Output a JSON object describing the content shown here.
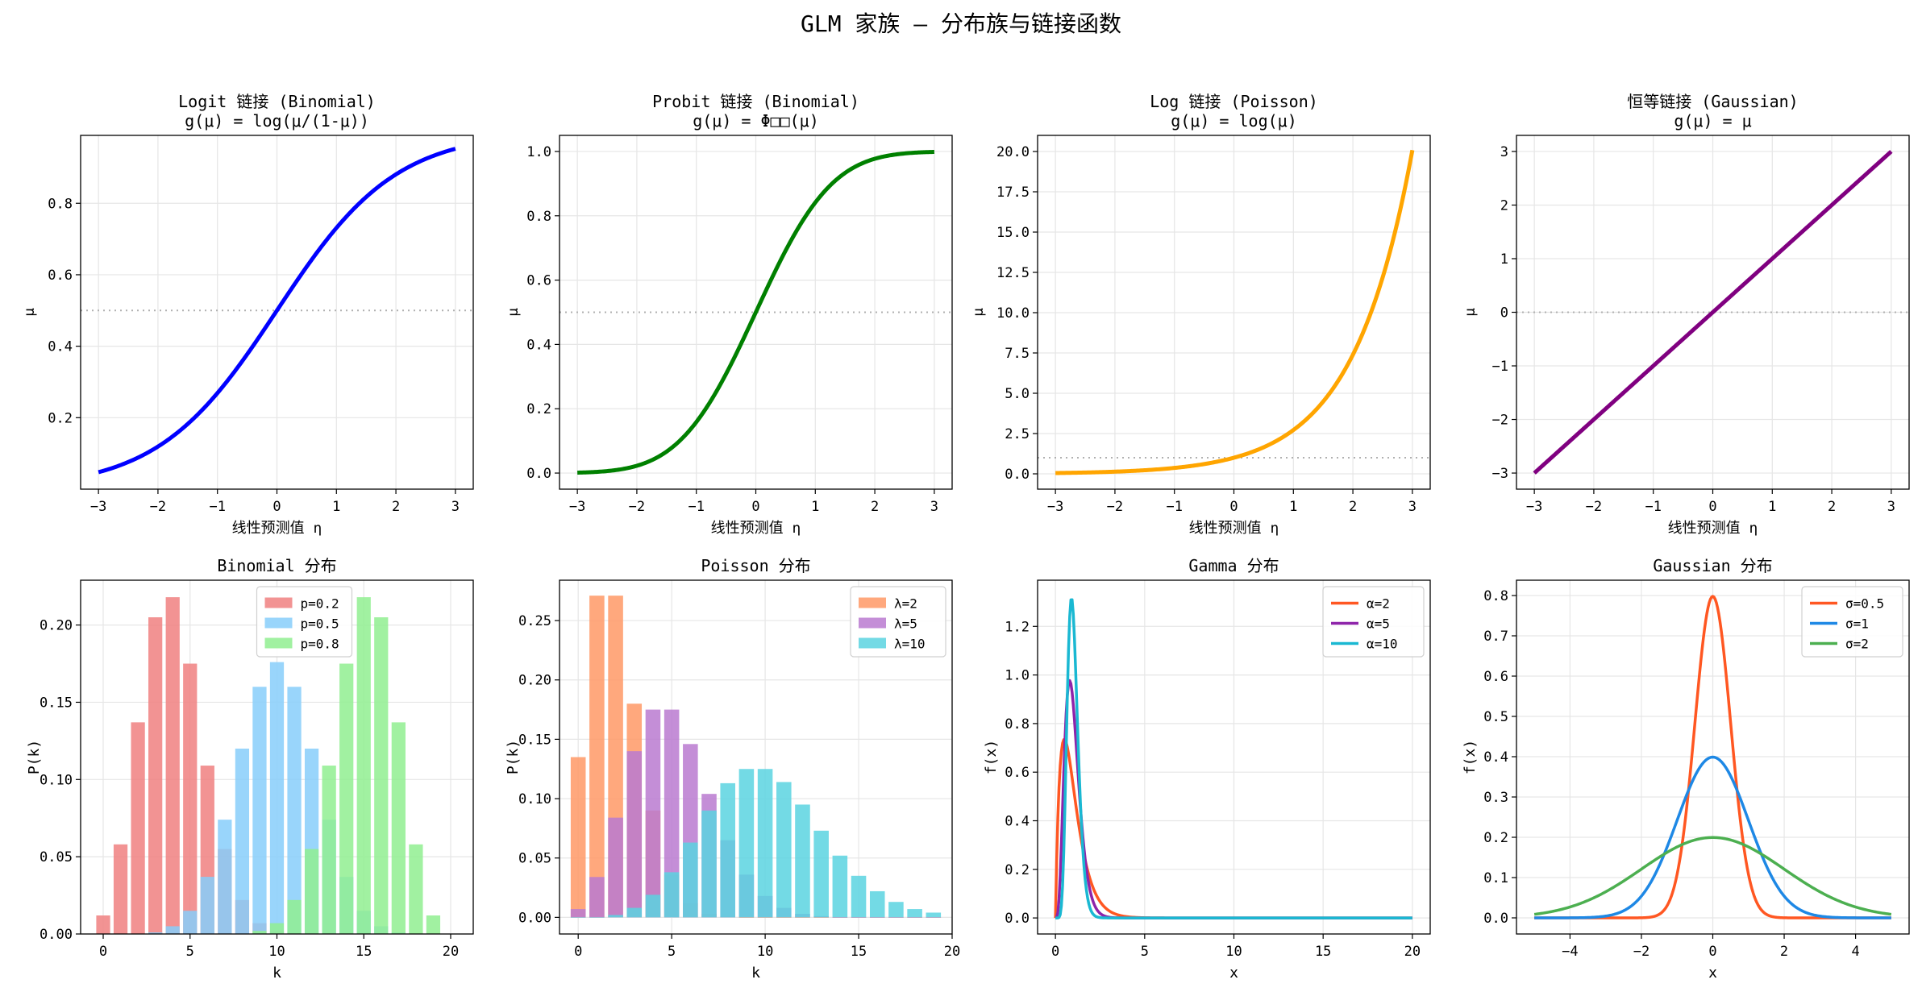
{
  "figure": {
    "title": "GLM 家族 — 分布族与链接函数"
  },
  "chart_data": [
    {
      "type": "line",
      "title": "Logit 链接 (Binomial)",
      "subtitle": "g(μ) = log(μ/(1-μ))",
      "xlabel": "线性预测值 η",
      "ylabel": "μ",
      "xlim": [
        -3.3,
        3.3
      ],
      "ylim": [
        0.0,
        0.99
      ],
      "xticks": [
        -3,
        -2,
        -1,
        0,
        1,
        2,
        3
      ],
      "xtick_labels": [
        "−3",
        "−2",
        "−1",
        "0",
        "1",
        "2",
        "3"
      ],
      "yticks": [
        0.2,
        0.4,
        0.6,
        0.8
      ],
      "ytick_labels": [
        "0.2",
        "0.4",
        "0.6",
        "0.8"
      ],
      "grid": true,
      "hline": 0.5,
      "series": [
        {
          "func": "logistic",
          "color": "#0000ff",
          "x": [
            -3,
            -2.5,
            -2,
            -1.5,
            -1,
            -0.5,
            0,
            0.5,
            1,
            1.5,
            2,
            2.5,
            3
          ],
          "y": [
            0.047,
            0.076,
            0.119,
            0.182,
            0.269,
            0.378,
            0.5,
            0.622,
            0.731,
            0.818,
            0.881,
            0.924,
            0.953
          ]
        }
      ]
    },
    {
      "type": "line",
      "title": "Probit 链接 (Binomial)",
      "subtitle": "g(μ) = Φ□□(μ)",
      "xlabel": "线性预测值 η",
      "ylabel": "μ",
      "xlim": [
        -3.3,
        3.3
      ],
      "ylim": [
        -0.05,
        1.05
      ],
      "xticks": [
        -3,
        -2,
        -1,
        0,
        1,
        2,
        3
      ],
      "xtick_labels": [
        "−3",
        "−2",
        "−1",
        "0",
        "1",
        "2",
        "3"
      ],
      "yticks": [
        0,
        0.2,
        0.4,
        0.6,
        0.8,
        1.0
      ],
      "ytick_labels": [
        "0.0",
        "0.2",
        "0.4",
        "0.6",
        "0.8",
        "1.0"
      ],
      "grid": true,
      "hline": 0.5,
      "series": [
        {
          "func": "normcdf",
          "color": "#008000",
          "x": [
            -3,
            -2.5,
            -2,
            -1.5,
            -1,
            -0.5,
            0,
            0.5,
            1,
            1.5,
            2,
            2.5,
            3
          ],
          "y": [
            0.001,
            0.006,
            0.023,
            0.067,
            0.159,
            0.309,
            0.5,
            0.691,
            0.841,
            0.933,
            0.977,
            0.994,
            0.999
          ]
        }
      ]
    },
    {
      "type": "line",
      "title": "Log 链接 (Poisson)",
      "subtitle": "g(μ) = log(μ)",
      "xlabel": "线性预测值 η",
      "ylabel": "μ",
      "xlim": [
        -3.3,
        3.3
      ],
      "ylim": [
        -0.95,
        21.0
      ],
      "xticks": [
        -3,
        -2,
        -1,
        0,
        1,
        2,
        3
      ],
      "xtick_labels": [
        "−3",
        "−2",
        "−1",
        "0",
        "1",
        "2",
        "3"
      ],
      "yticks": [
        0,
        2.5,
        5,
        7.5,
        10,
        12.5,
        15,
        17.5,
        20
      ],
      "ytick_labels": [
        "0.0",
        "2.5",
        "5.0",
        "7.5",
        "10.0",
        "12.5",
        "15.0",
        "17.5",
        "20.0"
      ],
      "grid": true,
      "hline": 1.0,
      "series": [
        {
          "func": "exp",
          "color": "#ffa500",
          "x": [
            -3,
            -2,
            -1,
            0,
            1,
            2,
            3
          ],
          "y": [
            0.05,
            0.135,
            0.368,
            1.0,
            2.718,
            7.389,
            20.09
          ]
        }
      ]
    },
    {
      "type": "line",
      "title": "恒等链接 (Gaussian)",
      "subtitle": "g(μ) = μ",
      "xlabel": "线性预测值 η",
      "ylabel": "μ",
      "xlim": [
        -3.3,
        3.3
      ],
      "ylim": [
        -3.3,
        3.3
      ],
      "xticks": [
        -3,
        -2,
        -1,
        0,
        1,
        2,
        3
      ],
      "xtick_labels": [
        "−3",
        "−2",
        "−1",
        "0",
        "1",
        "2",
        "3"
      ],
      "yticks": [
        -3,
        -2,
        -1,
        0,
        1,
        2,
        3
      ],
      "ytick_labels": [
        "−3",
        "−2",
        "−1",
        "0",
        "1",
        "2",
        "3"
      ],
      "grid": true,
      "hline": 0,
      "series": [
        {
          "func": "identity",
          "color": "#800080",
          "x": [
            -3,
            3
          ],
          "y": [
            -3,
            3
          ]
        }
      ]
    },
    {
      "type": "bar",
      "title": "Binomial 分布",
      "xlabel": "k",
      "ylabel": "P(k)",
      "xlim": [
        -1.3,
        21.3
      ],
      "ylim": [
        0,
        0.229
      ],
      "xticks": [
        0,
        5,
        10,
        15,
        20
      ],
      "xtick_labels": [
        "0",
        "5",
        "10",
        "15",
        "20"
      ],
      "yticks": [
        0,
        0.05,
        0.1,
        0.15,
        0.2
      ],
      "ytick_labels": [
        "0.00",
        "0.05",
        "0.10",
        "0.15",
        "0.20"
      ],
      "grid": true,
      "legend": "top-center",
      "x": [
        0,
        1,
        2,
        3,
        4,
        5,
        6,
        7,
        8,
        9,
        10,
        11,
        12,
        13,
        14,
        15,
        16,
        17,
        18,
        19,
        20
      ],
      "series": [
        {
          "name": "p=0.2",
          "color": "#f08080",
          "values": [
            0.012,
            0.058,
            0.137,
            0.205,
            0.218,
            0.175,
            0.109,
            0.055,
            0.022,
            0.007,
            0.002,
            0.0,
            0.0,
            0.0,
            0.0,
            0.0,
            0.0,
            0.0,
            0.0,
            0.0,
            0.0
          ]
        },
        {
          "name": "p=0.5",
          "color": "#87cefa",
          "values": [
            0.0,
            0.0,
            0.0,
            0.001,
            0.005,
            0.015,
            0.037,
            0.074,
            0.12,
            0.16,
            0.176,
            0.16,
            0.12,
            0.074,
            0.037,
            0.015,
            0.005,
            0.001,
            0.0,
            0.0,
            0.0
          ]
        },
        {
          "name": "p=0.8",
          "color": "#90ee90",
          "values": [
            0.0,
            0.0,
            0.0,
            0.0,
            0.0,
            0.0,
            0.0,
            0.0,
            0.0,
            0.002,
            0.007,
            0.022,
            0.055,
            0.109,
            0.175,
            0.218,
            0.205,
            0.137,
            0.058,
            0.012,
            0.0
          ]
        }
      ]
    },
    {
      "type": "bar",
      "title": "Poisson 分布",
      "xlabel": "k",
      "ylabel": "P(k)",
      "xlim": [
        -1.0,
        20.0
      ],
      "ylim": [
        -0.014,
        0.284
      ],
      "xticks": [
        0,
        5,
        10,
        15,
        20
      ],
      "xtick_labels": [
        "0",
        "5",
        "10",
        "15",
        "20"
      ],
      "yticks": [
        0,
        0.05,
        0.1,
        0.15,
        0.2,
        0.25
      ],
      "ytick_labels": [
        "0.00",
        "0.05",
        "0.10",
        "0.15",
        "0.20",
        "0.25"
      ],
      "grid": true,
      "legend": "top-right",
      "x": [
        0,
        1,
        2,
        3,
        4,
        5,
        6,
        7,
        8,
        9,
        10,
        11,
        12,
        13,
        14,
        15,
        16,
        17,
        18,
        19
      ],
      "series": [
        {
          "name": "λ=2",
          "color": "#ff9966",
          "values": [
            0.135,
            0.271,
            0.271,
            0.18,
            0.09,
            0.036,
            0.012,
            0.003,
            0.001,
            0.0,
            0.0,
            0.0,
            0.0,
            0.0,
            0.0,
            0.0,
            0.0,
            0.0,
            0.0,
            0.0
          ]
        },
        {
          "name": "λ=5",
          "color": "#ba7ad0",
          "values": [
            0.007,
            0.034,
            0.084,
            0.14,
            0.175,
            0.175,
            0.146,
            0.104,
            0.065,
            0.036,
            0.018,
            0.008,
            0.003,
            0.001,
            0.0,
            0.0,
            0.0,
            0.0,
            0.0,
            0.0
          ]
        },
        {
          "name": "λ=10",
          "color": "#5bd3e0",
          "values": [
            0.0,
            0.0,
            0.002,
            0.008,
            0.019,
            0.038,
            0.063,
            0.09,
            0.113,
            0.125,
            0.125,
            0.114,
            0.095,
            0.073,
            0.052,
            0.035,
            0.022,
            0.013,
            0.007,
            0.004
          ]
        }
      ]
    },
    {
      "type": "line",
      "title": "Gamma 分布",
      "xlabel": "x",
      "ylabel": "f(x)",
      "xlim": [
        -1.0,
        21.0
      ],
      "ylim": [
        -0.066,
        1.39
      ],
      "xticks": [
        0,
        5,
        10,
        15,
        20
      ],
      "xtick_labels": [
        "0",
        "5",
        "10",
        "15",
        "20"
      ],
      "yticks": [
        0,
        0.2,
        0.4,
        0.6,
        0.8,
        1.0,
        1.2
      ],
      "ytick_labels": [
        "0.0",
        "0.2",
        "0.4",
        "0.6",
        "0.8",
        "1.0",
        "1.2"
      ],
      "grid": true,
      "legend": "top-right",
      "series": [
        {
          "name": "α=2",
          "color": "#ff5722",
          "x": [
            0,
            0.1,
            0.25,
            0.5,
            0.75,
            1.0,
            1.5,
            2.0,
            2.5,
            3,
            4,
            5,
            10,
            20
          ],
          "y": [
            0,
            0.264,
            0.552,
            0.736,
            0.669,
            0.541,
            0.299,
            0.147,
            0.067,
            0.03,
            0.005,
            0.001,
            0,
            0
          ]
        },
        {
          "name": "α=5",
          "color": "#8e24aa",
          "x": [
            0,
            0.2,
            0.4,
            0.6,
            0.8,
            1.0,
            1.2,
            1.5,
            2.0,
            2.5,
            3,
            4,
            20
          ],
          "y": [
            0,
            0.012,
            0.178,
            0.514,
            0.814,
            0.977,
            0.887,
            0.55,
            0.151,
            0.032,
            0.005,
            0,
            0
          ]
        },
        {
          "name": "α=10",
          "color": "#1ab8d2",
          "x": [
            0,
            0.4,
            0.6,
            0.8,
            0.9,
            1.0,
            1.1,
            1.2,
            1.4,
            1.6,
            1.8,
            2.0,
            2.5,
            3,
            20
          ],
          "y": [
            0,
            0.007,
            0.197,
            0.809,
            1.152,
            1.251,
            1.134,
            0.901,
            0.41,
            0.122,
            0.027,
            0.005,
            0,
            0,
            0
          ]
        }
      ]
    },
    {
      "type": "line",
      "title": "Gaussian 分布",
      "xlabel": "x",
      "ylabel": "f(x)",
      "xlim": [
        -5.5,
        5.5
      ],
      "ylim": [
        -0.04,
        0.838
      ],
      "xticks": [
        -4,
        -2,
        0,
        2,
        4
      ],
      "xtick_labels": [
        "−4",
        "−2",
        "0",
        "2",
        "4"
      ],
      "yticks": [
        0,
        0.1,
        0.2,
        0.3,
        0.4,
        0.5,
        0.6,
        0.7,
        0.8
      ],
      "ytick_labels": [
        "0.0",
        "0.1",
        "0.2",
        "0.3",
        "0.4",
        "0.5",
        "0.6",
        "0.7",
        "0.8"
      ],
      "grid": true,
      "legend": "top-right",
      "series": [
        {
          "name": "σ=0.5",
          "color": "#ff5722",
          "func": "normpdf",
          "sigma": 0.5,
          "x": [
            -5,
            -1.5,
            -1,
            -0.5,
            0,
            0.5,
            1,
            1.5,
            5
          ],
          "y": [
            0,
            0.009,
            0.108,
            0.484,
            0.798,
            0.484,
            0.108,
            0.009,
            0
          ]
        },
        {
          "name": "σ=1",
          "color": "#1e88e5",
          "func": "normpdf",
          "sigma": 1,
          "x": [
            -5,
            -3,
            -2,
            -1,
            0,
            1,
            2,
            3,
            5
          ],
          "y": [
            0,
            0.004,
            0.054,
            0.242,
            0.399,
            0.242,
            0.054,
            0.004,
            0
          ]
        },
        {
          "name": "σ=2",
          "color": "#4caf50",
          "func": "normpdf",
          "sigma": 2,
          "x": [
            -5,
            -4,
            -2,
            0,
            2,
            4,
            5
          ],
          "y": [
            0.009,
            0.027,
            0.121,
            0.199,
            0.121,
            0.027,
            0.009
          ]
        }
      ]
    }
  ]
}
